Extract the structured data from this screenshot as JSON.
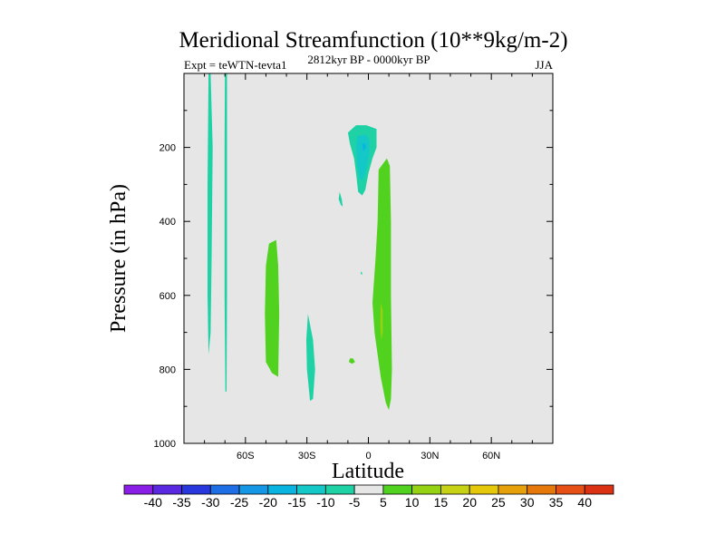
{
  "chart_data": {
    "type": "contour",
    "title": "Meridional Streamfunction (10**9kg/m-2)",
    "subtitle_left": "Expt = teWTN-tevta1",
    "subtitle_center": "2812kyr BP - 0000kyr BP",
    "subtitle_right": "JJA",
    "xlabel": "Latitude",
    "ylabel": "Pressure (in hPa)",
    "xlim": [
      -90,
      90
    ],
    "ylim": [
      1000,
      0
    ],
    "x_ticks": [
      {
        "value": -60,
        "label": "60S"
      },
      {
        "value": -30,
        "label": "30S"
      },
      {
        "value": 0,
        "label": "0"
      },
      {
        "value": 30,
        "label": "30N"
      },
      {
        "value": 60,
        "label": "60N"
      }
    ],
    "y_ticks": [
      {
        "value": 200,
        "label": "200"
      },
      {
        "value": 400,
        "label": "400"
      },
      {
        "value": 600,
        "label": "600"
      },
      {
        "value": 800,
        "label": "800"
      },
      {
        "value": 1000,
        "label": "1000"
      }
    ],
    "background_color": "#e6e6e6",
    "colorbar": {
      "levels": [
        "-40",
        "-35",
        "-30",
        "-25",
        "-20",
        "-15",
        "-10",
        "-5",
        "5",
        "10",
        "15",
        "20",
        "25",
        "30",
        "35",
        "40"
      ],
      "colors": [
        "#8a1ee6",
        "#5a28e0",
        "#2838dc",
        "#1e6ee6",
        "#1498e6",
        "#0ab4e0",
        "#14c8c8",
        "#1ed2a6",
        "#e6e6e6",
        "#50d21e",
        "#96d214",
        "#c8d214",
        "#e6c80a",
        "#e6a00a",
        "#e6780a",
        "#e65014",
        "#dc3214"
      ]
    },
    "regions": [
      {
        "name": "sh-polar-narrow-band-west",
        "level": "-10 to -5",
        "color": "#1ed2a6",
        "points": [
          [
            -78,
            0
          ],
          [
            -77,
            0
          ],
          [
            -76,
            200
          ],
          [
            -76.5,
            500
          ],
          [
            -77,
            700
          ],
          [
            -78,
            760
          ],
          [
            -78.5,
            600
          ],
          [
            -78.5,
            300
          ]
        ]
      },
      {
        "name": "sh-polar-narrow-band-east",
        "level": "-10 to -5",
        "color": "#1ed2a6",
        "points": [
          [
            -70,
            0
          ],
          [
            -69,
            0
          ],
          [
            -69,
            200
          ],
          [
            -69,
            600
          ],
          [
            -69.2,
            860
          ],
          [
            -69.8,
            860
          ],
          [
            -70.2,
            600
          ],
          [
            -70.2,
            200
          ]
        ]
      },
      {
        "name": "sh-midlat-positive-cell",
        "level": "5 to 10",
        "color": "#50d21e",
        "points": [
          [
            -48.5,
            460
          ],
          [
            -45,
            450
          ],
          [
            -44,
            520
          ],
          [
            -43.5,
            650
          ],
          [
            -44,
            820
          ],
          [
            -47,
            810
          ],
          [
            -50,
            780
          ],
          [
            -50.5,
            650
          ],
          [
            -50,
            520
          ]
        ]
      },
      {
        "name": "sh-subtropical-negative-cell",
        "level": "-10 to -5",
        "color": "#1ed2a6",
        "points": [
          [
            -29.5,
            650
          ],
          [
            -27,
            720
          ],
          [
            -26,
            800
          ],
          [
            -27,
            880
          ],
          [
            -28.5,
            885
          ],
          [
            -30,
            800
          ],
          [
            -30.3,
            720
          ]
        ]
      },
      {
        "name": "upper-tropical-negative-cell",
        "level": "-10 to -5",
        "color": "#1ed2a6",
        "points": [
          [
            -10,
            160
          ],
          [
            -6,
            140
          ],
          [
            -1,
            140
          ],
          [
            4,
            150
          ],
          [
            4,
            200
          ],
          [
            2,
            230
          ],
          [
            0,
            270
          ],
          [
            -1.5,
            315
          ],
          [
            -3,
            330
          ],
          [
            -5,
            320
          ],
          [
            -6,
            270
          ],
          [
            -7,
            230
          ],
          [
            -9,
            190
          ]
        ]
      },
      {
        "name": "upper-tropical-negative-core",
        "level": "-15 to -10",
        "color": "#14c8c8",
        "points": [
          [
            -5.5,
            170
          ],
          [
            -1.5,
            165
          ],
          [
            0.5,
            180
          ],
          [
            0.5,
            220
          ],
          [
            -1,
            260
          ],
          [
            -3,
            290
          ],
          [
            -4.5,
            280
          ],
          [
            -5.5,
            240
          ],
          [
            -6,
            200
          ]
        ]
      },
      {
        "name": "upper-tropical-negative-center",
        "level": "-20 to -15",
        "color": "#0ab4e0",
        "points": [
          [
            -3,
            190
          ],
          [
            -1.5,
            190
          ],
          [
            -1.2,
            200
          ],
          [
            -2.5,
            210
          ]
        ]
      },
      {
        "name": "tropical-positive-cell",
        "level": "5 to 10",
        "color": "#50d21e",
        "points": [
          [
            5,
            260
          ],
          [
            9,
            230
          ],
          [
            10.5,
            250
          ],
          [
            11,
            400
          ],
          [
            11,
            600
          ],
          [
            11.5,
            800
          ],
          [
            11,
            880
          ],
          [
            10,
            910
          ],
          [
            8.5,
            890
          ],
          [
            6,
            820
          ],
          [
            3,
            700
          ],
          [
            2,
            620
          ],
          [
            3.5,
            500
          ],
          [
            4.5,
            400
          ]
        ]
      },
      {
        "name": "tropical-positive-core",
        "level": "10 to 15",
        "color": "#96d214",
        "points": [
          [
            6,
            620
          ],
          [
            7,
            640
          ],
          [
            7,
            700
          ],
          [
            6.3,
            720
          ],
          [
            5.8,
            680
          ]
        ]
      },
      {
        "name": "small-negative-blob-upper",
        "level": "-10 to -5",
        "color": "#1ed2a6",
        "points": [
          [
            -14,
            320
          ],
          [
            -13,
            340
          ],
          [
            -12.5,
            360
          ],
          [
            -13.5,
            355
          ],
          [
            -14.5,
            340
          ]
        ]
      },
      {
        "name": "small-negative-blob-mid",
        "level": "-10 to -5",
        "color": "#1ed2a6",
        "points": [
          [
            -3.5,
            535
          ],
          [
            -3,
            540
          ],
          [
            -3.2,
            545
          ],
          [
            -3.8,
            540
          ]
        ]
      },
      {
        "name": "small-positive-blob-lower",
        "level": "5 to 10",
        "color": "#50d21e",
        "points": [
          [
            -9,
            770
          ],
          [
            -7.5,
            770
          ],
          [
            -6.5,
            780
          ],
          [
            -8,
            785
          ],
          [
            -9.5,
            780
          ]
        ]
      }
    ]
  }
}
